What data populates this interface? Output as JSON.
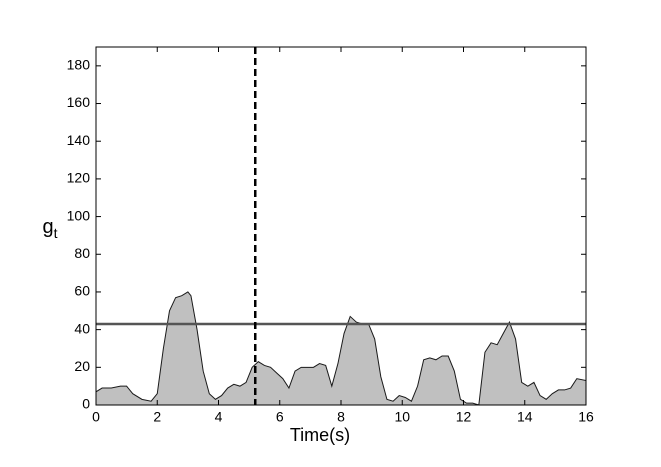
{
  "chart_data": {
    "type": "area",
    "xlabel": "Time(s)",
    "ylabel": "g",
    "ylabel_subscript": "t",
    "x": [
      0,
      0.2,
      0.5,
      0.8,
      1.0,
      1.2,
      1.5,
      1.8,
      2.0,
      2.2,
      2.4,
      2.6,
      2.8,
      3.0,
      3.1,
      3.3,
      3.5,
      3.7,
      3.9,
      4.1,
      4.3,
      4.5,
      4.7,
      4.9,
      5.1,
      5.3,
      5.5,
      5.7,
      5.9,
      6.1,
      6.3,
      6.5,
      6.7,
      6.9,
      7.1,
      7.3,
      7.5,
      7.7,
      7.9,
      8.1,
      8.3,
      8.5,
      8.7,
      8.9,
      9.1,
      9.3,
      9.5,
      9.7,
      9.9,
      10.1,
      10.3,
      10.5,
      10.7,
      10.9,
      11.1,
      11.3,
      11.5,
      11.7,
      11.9,
      12.1,
      12.3,
      12.5,
      12.7,
      12.9,
      13.1,
      13.3,
      13.5,
      13.7,
      13.9,
      14.1,
      14.3,
      14.5,
      14.7,
      14.9,
      15.1,
      15.3,
      15.5,
      15.7,
      16
    ],
    "values": [
      7,
      9,
      9,
      10,
      10,
      6,
      3,
      2,
      6,
      30,
      50,
      57,
      58,
      60,
      58,
      40,
      18,
      6,
      3,
      5,
      9,
      11,
      10,
      12,
      20,
      23,
      21,
      20,
      17,
      14,
      9,
      18,
      20,
      20,
      20,
      22,
      21,
      10,
      22,
      38,
      47,
      44,
      43,
      43,
      35,
      15,
      3,
      2,
      5,
      4,
      2,
      10,
      24,
      25,
      24,
      26,
      26,
      18,
      3,
      1,
      1,
      0,
      28,
      33,
      32,
      38,
      44,
      35,
      12,
      10,
      12,
      5,
      3,
      6,
      8,
      8,
      9,
      14,
      13
    ],
    "color": "#c0c0c0",
    "line_color": "#1a1a1a",
    "threshold": 43,
    "threshold_color": "#555555",
    "marker_x": 5.2,
    "xlim": [
      0,
      16
    ],
    "xticks": [
      0,
      2,
      4,
      6,
      8,
      10,
      12,
      14,
      16
    ],
    "ylim": [
      0,
      190
    ],
    "yticks": [
      0,
      20,
      40,
      60,
      80,
      100,
      120,
      140,
      160,
      180
    ]
  }
}
